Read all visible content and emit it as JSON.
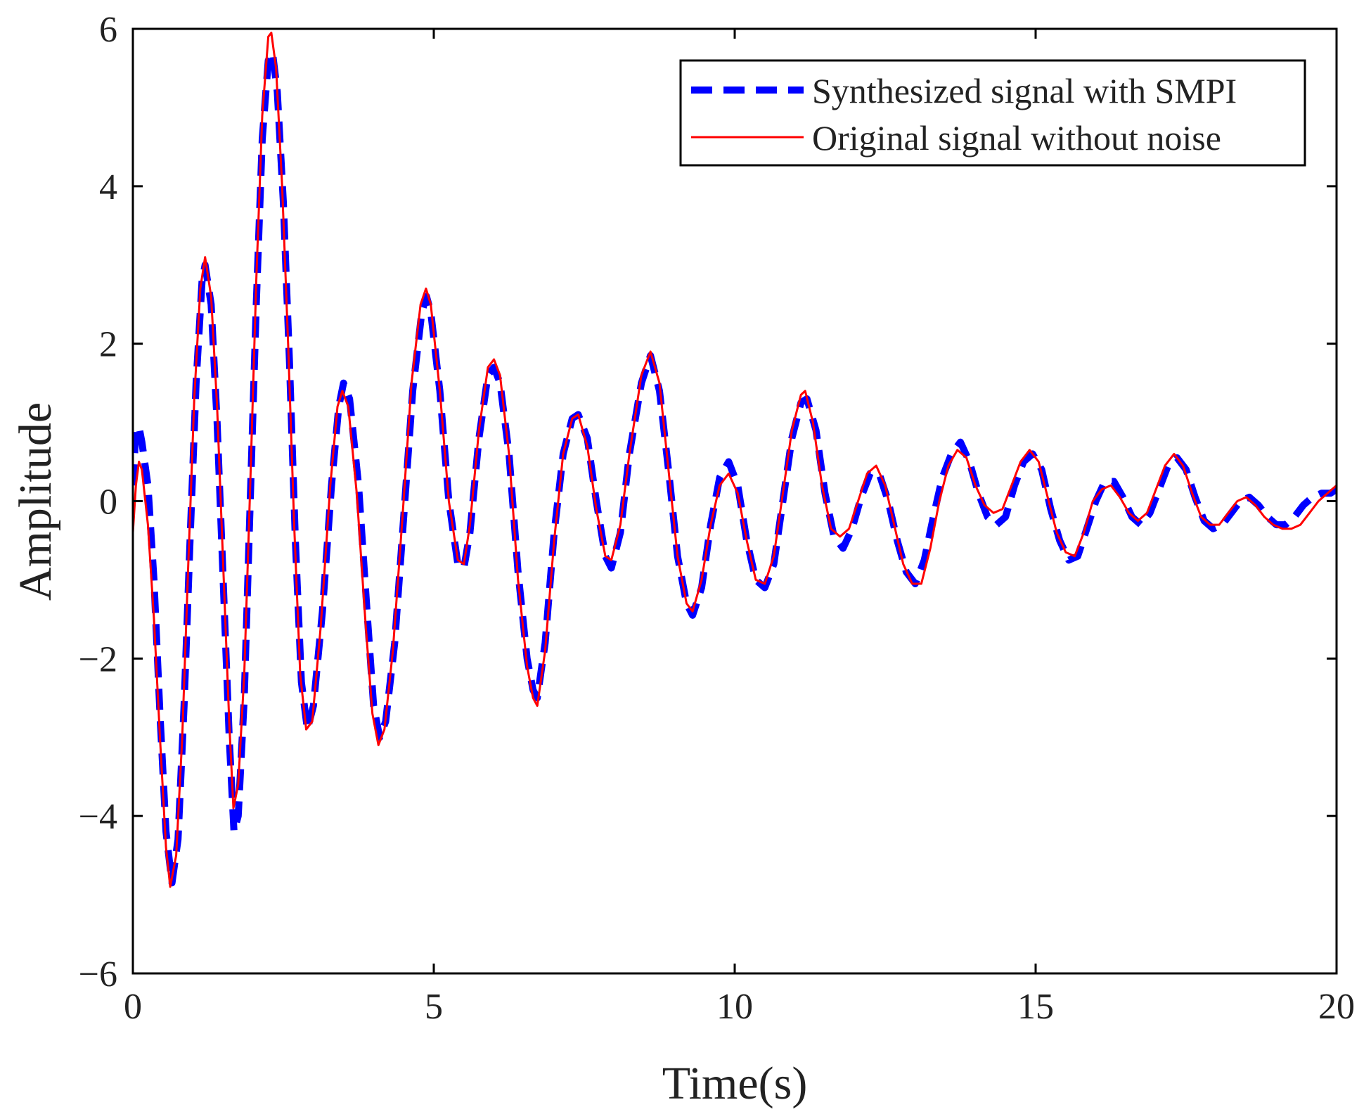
{
  "chart_data": {
    "type": "line",
    "title": "",
    "xlabel": "Time(s)",
    "ylabel": "Amplitude",
    "xlim": [
      0,
      20
    ],
    "ylim": [
      -6,
      6
    ],
    "xticks": [
      0,
      5,
      10,
      15,
      20
    ],
    "yticks": [
      -6,
      -4,
      -2,
      0,
      2,
      4,
      6
    ],
    "xtick_labels": [
      "0",
      "5",
      "10",
      "15",
      "20"
    ],
    "ytick_labels": [
      "−6",
      "−4",
      "−2",
      "0",
      "2",
      "4",
      "6"
    ],
    "grid": false,
    "legend_position": "top-right",
    "series": [
      {
        "name": "Synthesized signal with SMPI",
        "color": "#0000ff",
        "style": "dashed",
        "points": [
          [
            0.0,
            0.2
          ],
          [
            0.05,
            0.9
          ],
          [
            0.1,
            0.95
          ],
          [
            0.15,
            0.75
          ],
          [
            0.25,
            0.2
          ],
          [
            0.35,
            -1.0
          ],
          [
            0.45,
            -2.7
          ],
          [
            0.55,
            -4.2
          ],
          [
            0.65,
            -4.85
          ],
          [
            0.75,
            -4.3
          ],
          [
            0.85,
            -2.6
          ],
          [
            0.95,
            -0.5
          ],
          [
            1.05,
            1.5
          ],
          [
            1.15,
            2.8
          ],
          [
            1.2,
            3.0
          ],
          [
            1.3,
            2.5
          ],
          [
            1.4,
            1.0
          ],
          [
            1.5,
            -1.0
          ],
          [
            1.6,
            -3.0
          ],
          [
            1.68,
            -4.2
          ],
          [
            1.75,
            -4.0
          ],
          [
            1.85,
            -2.5
          ],
          [
            1.95,
            0.0
          ],
          [
            2.05,
            2.5
          ],
          [
            2.15,
            4.6
          ],
          [
            2.25,
            5.6
          ],
          [
            2.32,
            5.7
          ],
          [
            2.4,
            5.2
          ],
          [
            2.5,
            3.8
          ],
          [
            2.6,
            1.8
          ],
          [
            2.7,
            -0.5
          ],
          [
            2.8,
            -2.3
          ],
          [
            2.9,
            -2.9
          ],
          [
            3.0,
            -2.6
          ],
          [
            3.15,
            -1.4
          ],
          [
            3.3,
            0.2
          ],
          [
            3.42,
            1.2
          ],
          [
            3.5,
            1.5
          ],
          [
            3.6,
            1.3
          ],
          [
            3.75,
            0.2
          ],
          [
            3.9,
            -1.5
          ],
          [
            4.0,
            -2.6
          ],
          [
            4.1,
            -3.0
          ],
          [
            4.2,
            -2.8
          ],
          [
            4.35,
            -1.8
          ],
          [
            4.5,
            -0.2
          ],
          [
            4.65,
            1.4
          ],
          [
            4.8,
            2.4
          ],
          [
            4.88,
            2.6
          ],
          [
            4.95,
            2.4
          ],
          [
            5.1,
            1.4
          ],
          [
            5.25,
            0.0
          ],
          [
            5.4,
            -0.8
          ],
          [
            5.5,
            -0.85
          ],
          [
            5.6,
            -0.4
          ],
          [
            5.75,
            0.8
          ],
          [
            5.9,
            1.6
          ],
          [
            6.0,
            1.7
          ],
          [
            6.1,
            1.5
          ],
          [
            6.25,
            0.6
          ],
          [
            6.4,
            -0.9
          ],
          [
            6.55,
            -2.0
          ],
          [
            6.65,
            -2.4
          ],
          [
            6.72,
            -2.5
          ],
          [
            6.85,
            -1.8
          ],
          [
            7.0,
            -0.4
          ],
          [
            7.15,
            0.6
          ],
          [
            7.3,
            1.05
          ],
          [
            7.4,
            1.1
          ],
          [
            7.55,
            0.8
          ],
          [
            7.7,
            0.0
          ],
          [
            7.85,
            -0.7
          ],
          [
            7.95,
            -0.85
          ],
          [
            8.1,
            -0.4
          ],
          [
            8.25,
            0.6
          ],
          [
            8.45,
            1.5
          ],
          [
            8.6,
            1.85
          ],
          [
            8.75,
            1.4
          ],
          [
            8.9,
            0.4
          ],
          [
            9.05,
            -0.7
          ],
          [
            9.2,
            -1.3
          ],
          [
            9.3,
            -1.45
          ],
          [
            9.45,
            -1.1
          ],
          [
            9.6,
            -0.3
          ],
          [
            9.75,
            0.3
          ],
          [
            9.9,
            0.5
          ],
          [
            10.05,
            0.2
          ],
          [
            10.2,
            -0.5
          ],
          [
            10.35,
            -1.0
          ],
          [
            10.5,
            -1.1
          ],
          [
            10.65,
            -0.8
          ],
          [
            10.8,
            0.0
          ],
          [
            10.95,
            0.8
          ],
          [
            11.1,
            1.25
          ],
          [
            11.2,
            1.3
          ],
          [
            11.35,
            0.9
          ],
          [
            11.5,
            0.1
          ],
          [
            11.65,
            -0.45
          ],
          [
            11.8,
            -0.6
          ],
          [
            11.95,
            -0.35
          ],
          [
            12.1,
            0.05
          ],
          [
            12.25,
            0.35
          ],
          [
            12.4,
            0.35
          ],
          [
            12.55,
            0.0
          ],
          [
            12.7,
            -0.5
          ],
          [
            12.85,
            -0.9
          ],
          [
            13.0,
            -1.05
          ],
          [
            13.15,
            -0.75
          ],
          [
            13.3,
            -0.2
          ],
          [
            13.45,
            0.3
          ],
          [
            13.6,
            0.6
          ],
          [
            13.75,
            0.75
          ],
          [
            13.9,
            0.5
          ],
          [
            14.05,
            0.1
          ],
          [
            14.2,
            -0.2
          ],
          [
            14.35,
            -0.3
          ],
          [
            14.5,
            -0.2
          ],
          [
            14.65,
            0.2
          ],
          [
            14.8,
            0.5
          ],
          [
            14.95,
            0.6
          ],
          [
            15.1,
            0.4
          ],
          [
            15.25,
            -0.1
          ],
          [
            15.4,
            -0.5
          ],
          [
            15.55,
            -0.75
          ],
          [
            15.7,
            -0.7
          ],
          [
            15.85,
            -0.35
          ],
          [
            16.0,
            0.0
          ],
          [
            16.15,
            0.25
          ],
          [
            16.3,
            0.25
          ],
          [
            16.45,
            0.05
          ],
          [
            16.6,
            -0.2
          ],
          [
            16.75,
            -0.3
          ],
          [
            16.9,
            -0.15
          ],
          [
            17.05,
            0.15
          ],
          [
            17.2,
            0.45
          ],
          [
            17.35,
            0.55
          ],
          [
            17.5,
            0.4
          ],
          [
            17.65,
            0.05
          ],
          [
            17.8,
            -0.25
          ],
          [
            17.95,
            -0.35
          ],
          [
            18.1,
            -0.3
          ],
          [
            18.25,
            -0.15
          ],
          [
            18.4,
            0.0
          ],
          [
            18.55,
            0.05
          ],
          [
            18.7,
            -0.05
          ],
          [
            18.85,
            -0.2
          ],
          [
            19.0,
            -0.3
          ],
          [
            19.15,
            -0.3
          ],
          [
            19.3,
            -0.2
          ],
          [
            19.45,
            -0.05
          ],
          [
            19.6,
            0.05
          ],
          [
            19.75,
            0.1
          ],
          [
            19.9,
            0.1
          ],
          [
            20.0,
            0.15
          ]
        ]
      },
      {
        "name": "Original signal without noise",
        "color": "#ff0000",
        "style": "solid",
        "points": [
          [
            0.0,
            -0.4
          ],
          [
            0.05,
            0.2
          ],
          [
            0.1,
            0.5
          ],
          [
            0.15,
            0.4
          ],
          [
            0.25,
            -0.3
          ],
          [
            0.35,
            -1.5
          ],
          [
            0.45,
            -3.0
          ],
          [
            0.55,
            -4.4
          ],
          [
            0.62,
            -4.9
          ],
          [
            0.72,
            -4.5
          ],
          [
            0.82,
            -3.0
          ],
          [
            0.92,
            -0.8
          ],
          [
            1.02,
            1.3
          ],
          [
            1.12,
            2.7
          ],
          [
            1.2,
            3.1
          ],
          [
            1.3,
            2.6
          ],
          [
            1.4,
            1.2
          ],
          [
            1.5,
            -0.8
          ],
          [
            1.6,
            -2.8
          ],
          [
            1.67,
            -3.9
          ],
          [
            1.75,
            -3.6
          ],
          [
            1.85,
            -2.2
          ],
          [
            1.95,
            0.2
          ],
          [
            2.05,
            2.8
          ],
          [
            2.15,
            4.9
          ],
          [
            2.25,
            5.9
          ],
          [
            2.3,
            5.95
          ],
          [
            2.38,
            5.5
          ],
          [
            2.48,
            4.0
          ],
          [
            2.58,
            2.0
          ],
          [
            2.68,
            -0.3
          ],
          [
            2.78,
            -2.2
          ],
          [
            2.88,
            -2.9
          ],
          [
            2.98,
            -2.8
          ],
          [
            3.12,
            -1.6
          ],
          [
            3.28,
            0.2
          ],
          [
            3.4,
            1.2
          ],
          [
            3.48,
            1.4
          ],
          [
            3.58,
            1.2
          ],
          [
            3.72,
            0.1
          ],
          [
            3.87,
            -1.6
          ],
          [
            3.98,
            -2.7
          ],
          [
            4.08,
            -3.1
          ],
          [
            4.18,
            -2.9
          ],
          [
            4.32,
            -1.9
          ],
          [
            4.48,
            -0.2
          ],
          [
            4.63,
            1.5
          ],
          [
            4.78,
            2.5
          ],
          [
            4.87,
            2.7
          ],
          [
            4.95,
            2.5
          ],
          [
            5.1,
            1.4
          ],
          [
            5.25,
            0.0
          ],
          [
            5.4,
            -0.75
          ],
          [
            5.5,
            -0.8
          ],
          [
            5.6,
            -0.3
          ],
          [
            5.75,
            0.9
          ],
          [
            5.9,
            1.7
          ],
          [
            6.0,
            1.8
          ],
          [
            6.1,
            1.6
          ],
          [
            6.25,
            0.6
          ],
          [
            6.4,
            -1.0
          ],
          [
            6.55,
            -2.1
          ],
          [
            6.65,
            -2.5
          ],
          [
            6.72,
            -2.6
          ],
          [
            6.85,
            -1.9
          ],
          [
            7.0,
            -0.5
          ],
          [
            7.15,
            0.6
          ],
          [
            7.3,
            1.05
          ],
          [
            7.4,
            1.1
          ],
          [
            7.55,
            0.7
          ],
          [
            7.7,
            -0.1
          ],
          [
            7.85,
            -0.7
          ],
          [
            7.95,
            -0.75
          ],
          [
            8.1,
            -0.3
          ],
          [
            8.25,
            0.6
          ],
          [
            8.45,
            1.6
          ],
          [
            8.6,
            1.9
          ],
          [
            8.75,
            1.5
          ],
          [
            8.9,
            0.4
          ],
          [
            9.05,
            -0.7
          ],
          [
            9.2,
            -1.3
          ],
          [
            9.3,
            -1.4
          ],
          [
            9.45,
            -1.0
          ],
          [
            9.6,
            -0.3
          ],
          [
            9.75,
            0.2
          ],
          [
            9.9,
            0.35
          ],
          [
            10.05,
            0.1
          ],
          [
            10.2,
            -0.5
          ],
          [
            10.35,
            -1.0
          ],
          [
            10.5,
            -1.05
          ],
          [
            10.65,
            -0.7
          ],
          [
            10.8,
            0.1
          ],
          [
            10.95,
            0.9
          ],
          [
            11.1,
            1.35
          ],
          [
            11.17,
            1.4
          ],
          [
            11.3,
            1.0
          ],
          [
            11.45,
            0.2
          ],
          [
            11.6,
            -0.35
          ],
          [
            11.75,
            -0.45
          ],
          [
            11.9,
            -0.35
          ],
          [
            12.05,
            0.0
          ],
          [
            12.2,
            0.35
          ],
          [
            12.35,
            0.45
          ],
          [
            12.5,
            0.2
          ],
          [
            12.65,
            -0.3
          ],
          [
            12.8,
            -0.8
          ],
          [
            12.95,
            -1.05
          ],
          [
            13.1,
            -1.05
          ],
          [
            13.25,
            -0.6
          ],
          [
            13.4,
            0.0
          ],
          [
            13.55,
            0.45
          ],
          [
            13.7,
            0.65
          ],
          [
            13.85,
            0.55
          ],
          [
            14.0,
            0.2
          ],
          [
            14.15,
            -0.05
          ],
          [
            14.3,
            -0.15
          ],
          [
            14.45,
            -0.1
          ],
          [
            14.6,
            0.2
          ],
          [
            14.75,
            0.5
          ],
          [
            14.9,
            0.65
          ],
          [
            15.05,
            0.5
          ],
          [
            15.2,
            0.05
          ],
          [
            15.35,
            -0.4
          ],
          [
            15.5,
            -0.65
          ],
          [
            15.65,
            -0.7
          ],
          [
            15.8,
            -0.4
          ],
          [
            15.95,
            0.0
          ],
          [
            16.1,
            0.15
          ],
          [
            16.25,
            0.2
          ],
          [
            16.4,
            0.05
          ],
          [
            16.55,
            -0.15
          ],
          [
            16.7,
            -0.25
          ],
          [
            16.85,
            -0.15
          ],
          [
            17.0,
            0.15
          ],
          [
            17.15,
            0.45
          ],
          [
            17.3,
            0.6
          ],
          [
            17.45,
            0.45
          ],
          [
            17.6,
            0.1
          ],
          [
            17.75,
            -0.2
          ],
          [
            17.9,
            -0.3
          ],
          [
            18.05,
            -0.3
          ],
          [
            18.2,
            -0.15
          ],
          [
            18.35,
            0.0
          ],
          [
            18.5,
            0.05
          ],
          [
            18.65,
            -0.05
          ],
          [
            18.8,
            -0.2
          ],
          [
            18.95,
            -0.3
          ],
          [
            19.1,
            -0.35
          ],
          [
            19.25,
            -0.35
          ],
          [
            19.4,
            -0.3
          ],
          [
            19.55,
            -0.15
          ],
          [
            19.7,
            0.0
          ],
          [
            19.85,
            0.1
          ],
          [
            20.0,
            0.2
          ]
        ]
      }
    ]
  }
}
